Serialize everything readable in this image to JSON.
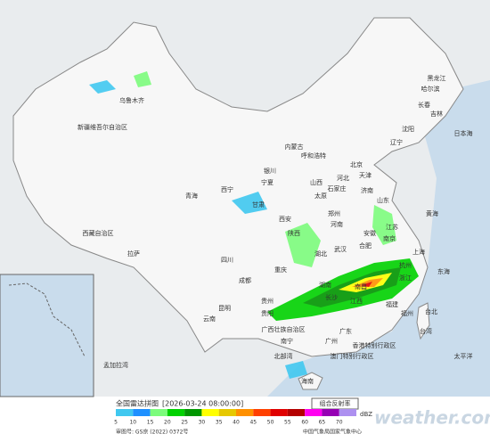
{
  "header": {
    "title": "全国雷达拼图",
    "time": "[2026-03-24 08:00:00]",
    "product": "组合反射率"
  },
  "legend": {
    "ticks": [
      5,
      10,
      15,
      20,
      25,
      30,
      35,
      40,
      45,
      50,
      55,
      60,
      65,
      70
    ],
    "colors": [
      "#40c8f0",
      "#1e90ff",
      "#7cfc7c",
      "#00d200",
      "#009600",
      "#ffff00",
      "#e6c800",
      "#ff9000",
      "#ff4000",
      "#e00000",
      "#b40000",
      "#ff00f0",
      "#9600b4",
      "#ad90f0"
    ],
    "unit": "dBZ"
  },
  "footer": {
    "approval": "审图号: GS京 (2022) 0372号",
    "agency": "中国气象局国家气象中心",
    "watermark": "weather.com.cn"
  },
  "labels": [
    "新疆维吾尔自治区",
    "乌鲁木齐",
    "西藏自治区",
    "拉萨",
    "青海",
    "西宁",
    "甘肃",
    "内蒙古",
    "呼和浩特",
    "黑龙江",
    "哈尔滨",
    "吉林",
    "长春",
    "辽宁",
    "沈阳",
    "北京",
    "天津",
    "河北",
    "石家庄",
    "山西",
    "太原",
    "宁夏",
    "银川",
    "陕西",
    "西安",
    "河南",
    "郑州",
    "山东",
    "济南",
    "江苏",
    "南京",
    "安徽",
    "合肥",
    "上海",
    "湖北",
    "武汉",
    "四川",
    "成都",
    "重庆",
    "湖南",
    "长沙",
    "浙江",
    "杭州",
    "江西",
    "南昌",
    "福建",
    "福州",
    "贵州",
    "贵阳",
    "云南",
    "昆明",
    "广西壮族自治区",
    "南宁",
    "广东",
    "广州",
    "香港特别行政区",
    "澳门特别行政区",
    "海南",
    "台湾",
    "台北",
    "日本海",
    "黄海",
    "东海",
    "太平洋",
    "孟加拉湾",
    "北部湾"
  ]
}
